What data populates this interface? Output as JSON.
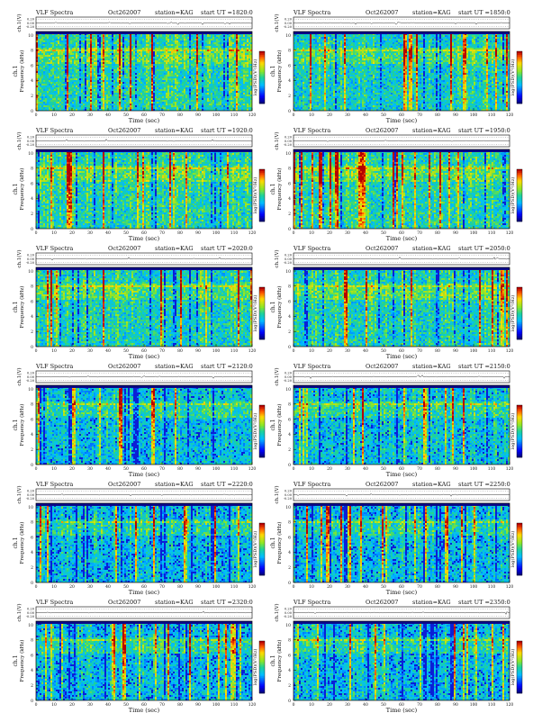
{
  "page": {
    "header_prefix": "VLF Spectra",
    "station_label": "station=KAG",
    "start_label": "start  UT  =",
    "top_axis_label": "ch.1(V)",
    "top_ticks": [
      "0.20",
      "0.00",
      "-0.20"
    ],
    "freq_axis_label": "Frequency  (kHz)",
    "channel_label": "ch.1",
    "colorbar_label": "log(PSD)(V²/Hz)",
    "time_axis_label": "Time  (sec)",
    "x_ticks": [
      "0",
      "10",
      "20",
      "30",
      "40",
      "50",
      "60",
      "70",
      "80",
      "90",
      "100",
      "110",
      "120"
    ],
    "y_ticks": [
      "0",
      "2",
      "4",
      "6",
      "8",
      "10"
    ]
  },
  "chart_data": [
    {
      "type": "heatmap",
      "title": "VLF Spectra",
      "date": "Oct262007",
      "station": "KAG",
      "start_ut": "1820:0",
      "xlabel": "Time (sec)",
      "ylabel": "Frequency (kHz)",
      "xlim": [
        0,
        120
      ],
      "ylim": [
        0,
        10
      ],
      "colorbar": "log(PSD)(V²/Hz)",
      "intensity": 0.62
    },
    {
      "type": "heatmap",
      "title": "VLF Spectra",
      "date": "Oct262007",
      "station": "KAG",
      "start_ut": "1850:0",
      "xlabel": "Time (sec)",
      "ylabel": "Frequency (kHz)",
      "xlim": [
        0,
        120
      ],
      "ylim": [
        0,
        10
      ],
      "colorbar": "log(PSD)(V²/Hz)",
      "intensity": 0.55
    },
    {
      "type": "heatmap",
      "title": "VLF Spectra",
      "date": "Oct262007",
      "station": "KAG",
      "start_ut": "1920:0",
      "xlabel": "Time (sec)",
      "ylabel": "Frequency (kHz)",
      "xlim": [
        0,
        120
      ],
      "ylim": [
        0,
        10
      ],
      "colorbar": "log(PSD)(V²/Hz)",
      "intensity": 0.6
    },
    {
      "type": "heatmap",
      "title": "VLF Spectra",
      "date": "Oct262007",
      "station": "KAG",
      "start_ut": "1950:0",
      "xlabel": "Time (sec)",
      "ylabel": "Frequency (kHz)",
      "xlim": [
        0,
        120
      ],
      "ylim": [
        0,
        10
      ],
      "colorbar": "log(PSD)(V²/Hz)",
      "intensity": 0.6
    },
    {
      "type": "heatmap",
      "title": "VLF Spectra",
      "date": "Oct262007",
      "station": "KAG",
      "start_ut": "2020:0",
      "xlabel": "Time (sec)",
      "ylabel": "Frequency (kHz)",
      "xlim": [
        0,
        120
      ],
      "ylim": [
        0,
        10
      ],
      "colorbar": "log(PSD)(V²/Hz)",
      "intensity": 0.58
    },
    {
      "type": "heatmap",
      "title": "VLF Spectra",
      "date": "Oct262007",
      "station": "KAG",
      "start_ut": "2050:0",
      "xlabel": "Time (sec)",
      "ylabel": "Frequency (kHz)",
      "xlim": [
        0,
        120
      ],
      "ylim": [
        0,
        10
      ],
      "colorbar": "log(PSD)(V²/Hz)",
      "intensity": 0.58
    },
    {
      "type": "heatmap",
      "title": "VLF Spectra",
      "date": "Oct262007",
      "station": "KAG",
      "start_ut": "2120:0",
      "xlabel": "Time (sec)",
      "ylabel": "Frequency (kHz)",
      "xlim": [
        0,
        120
      ],
      "ylim": [
        0,
        10
      ],
      "colorbar": "log(PSD)(V²/Hz)",
      "intensity": 0.45
    },
    {
      "type": "heatmap",
      "title": "VLF Spectra",
      "date": "Oct262007",
      "station": "KAG",
      "start_ut": "2150:0",
      "xlabel": "Time (sec)",
      "ylabel": "Frequency (kHz)",
      "xlim": [
        0,
        120
      ],
      "ylim": [
        0,
        10
      ],
      "colorbar": "log(PSD)(V²/Hz)",
      "intensity": 0.45
    },
    {
      "type": "heatmap",
      "title": "VLF Spectra",
      "date": "Oct262007",
      "station": "KAG",
      "start_ut": "2220:0",
      "xlabel": "Time (sec)",
      "ylabel": "Frequency (kHz)",
      "xlim": [
        0,
        120
      ],
      "ylim": [
        0,
        10
      ],
      "colorbar": "log(PSD)(V²/Hz)",
      "intensity": 0.4
    },
    {
      "type": "heatmap",
      "title": "VLF Spectra",
      "date": "Oct262007",
      "station": "KAG",
      "start_ut": "2250:0",
      "xlabel": "Time (sec)",
      "ylabel": "Frequency (kHz)",
      "xlim": [
        0,
        120
      ],
      "ylim": [
        0,
        10
      ],
      "colorbar": "log(PSD)(V²/Hz)",
      "intensity": 0.42
    },
    {
      "type": "heatmap",
      "title": "VLF Spectra",
      "date": "Oct262007",
      "station": "KAG",
      "start_ut": "2320:0",
      "xlabel": "Time (sec)",
      "ylabel": "Frequency (kHz)",
      "xlim": [
        0,
        120
      ],
      "ylim": [
        0,
        10
      ],
      "colorbar": "log(PSD)(V²/Hz)",
      "intensity": 0.42
    },
    {
      "type": "heatmap",
      "title": "VLF Spectra",
      "date": "Oct262007",
      "station": "KAG",
      "start_ut": "2350:0",
      "xlabel": "Time (sec)",
      "ylabel": "Frequency (kHz)",
      "xlim": [
        0,
        120
      ],
      "ylim": [
        0,
        10
      ],
      "colorbar": "log(PSD)(V²/Hz)",
      "intensity": 0.42
    }
  ]
}
